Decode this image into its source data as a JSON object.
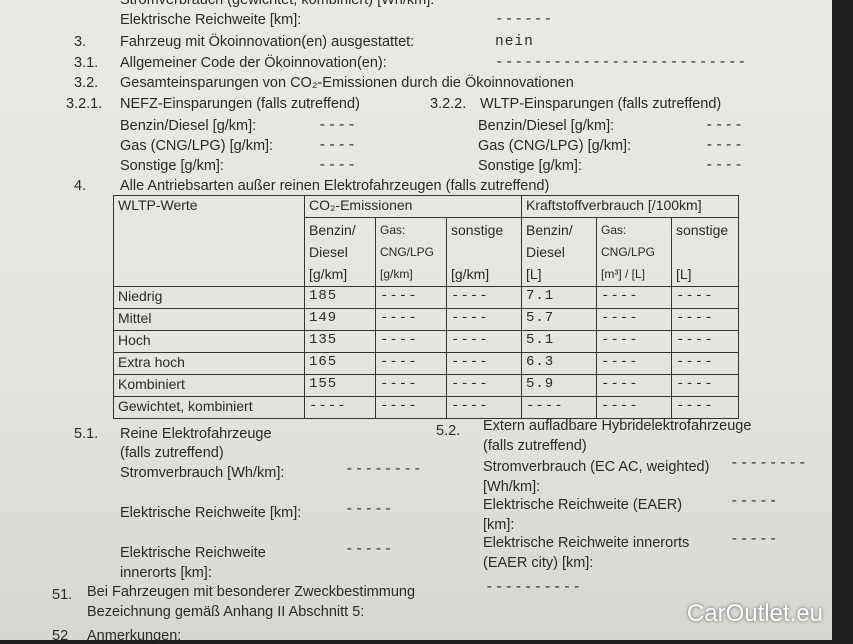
{
  "top": {
    "strom_label": "Stromverbrauch (gewichtet, kombiniert) [Wh/km]:",
    "strom_value": "------",
    "reich_label": "Elektrische Reichweite [km]:",
    "reich_value": "------"
  },
  "s3": {
    "num": "3.",
    "label": "Fahrzeug mit Ökoinnovation(en) ausgestattet:",
    "value": "nein"
  },
  "s31": {
    "num": "3.1.",
    "label": "Allgemeiner Code der Ökoinnovation(en):",
    "value": "--------------------------"
  },
  "s32": {
    "num": "3.2.",
    "label": "Gesamteinsparungen von CO₂-Emissionen durch die Ökoinnovationen"
  },
  "s321": {
    "num": "3.2.1.",
    "label": "NEFZ-Einsparungen (falls zutreffend)",
    "rows": [
      {
        "l": "Benzin/Diesel [g/km]:",
        "v": "----"
      },
      {
        "l": "Gas (CNG/LPG) [g/km]:",
        "v": "----"
      },
      {
        "l": "Sonstige [g/km]:",
        "v": "----"
      }
    ]
  },
  "s322": {
    "num": "3.2.2.",
    "label": "WLTP-Einsparungen (falls zutreffend)",
    "rows": [
      {
        "l": "Benzin/Diesel [g/km]:",
        "v": "----"
      },
      {
        "l": "Gas (CNG/LPG) [g/km]:",
        "v": "----"
      },
      {
        "l": "Sonstige [g/km]:",
        "v": "----"
      }
    ]
  },
  "s4": {
    "num": "4.",
    "label": "Alle Antriebsarten außer reinen Elektrofahrzeugen (falls zutreffend)"
  },
  "table": {
    "h0": "WLTP-Werte",
    "h_co2": "CO₂-Emissionen",
    "h_fuel": "Kraftstoffverbrauch [/100km]",
    "sub": [
      "Benzin/\nDiesel\n[g/km]",
      "Gas:\nCNG/LPG\n[g/km]",
      "sonstige\n\n[g/km]",
      "Benzin/\nDiesel\n[L]",
      "Gas:\nCNG/LPG\n[m³] / [L]",
      "sonstige\n\n[L]"
    ],
    "rows": [
      [
        "Niedrig",
        "185",
        "----",
        "----",
        "7.1",
        "----",
        "----"
      ],
      [
        "Mittel",
        "149",
        "----",
        "----",
        "5.7",
        "----",
        "----"
      ],
      [
        "Hoch",
        "135",
        "----",
        "----",
        "5.1",
        "----",
        "----"
      ],
      [
        "Extra hoch",
        "165",
        "----",
        "----",
        "6.3",
        "----",
        "----"
      ],
      [
        "Kombiniert",
        "155",
        "----",
        "----",
        "5.9",
        "----",
        "----"
      ],
      [
        "Gewichtet, kombiniert",
        "----",
        "----",
        "----",
        "----",
        "----",
        "----"
      ]
    ]
  },
  "s51": {
    "num": "5.1.",
    "label": "Reine Elektrofahrzeuge",
    "sub": "(falls zutreffend)",
    "strom": "Stromverbrauch [Wh/km]:",
    "strom_v": "--------",
    "reich": "Elektrische Reichweite [km]:",
    "reich_v": "-----",
    "inner1": "Elektrische Reichweite",
    "inner2": "innerorts [km]:",
    "inner_v": "-----"
  },
  "s52": {
    "num": "5.2.",
    "label": "Extern aufladbare Hybridelektrofahrzeuge",
    "sub": "(falls zutreffend)",
    "strom1": "Stromverbrauch (EC AC, weighted)",
    "strom2": "[Wh/km]:",
    "strom_v": "--------",
    "eaer1": "Elektrische Reichweite (EAER)",
    "eaer2": "[km]:",
    "eaer_v": "-----",
    "city1": "Elektrische Reichweite innerorts",
    "city2": "(EAER city) [km]:",
    "city_v": "-----"
  },
  "s51b": {
    "num": "51.",
    "label1": "Bei Fahrzeugen mit besonderer Zweckbestimmung",
    "label2": "Bezeichnung gemäß Anhang II Abschnitt 5:",
    "value": "----------"
  },
  "s52b": {
    "num": "52",
    "label": "Anmerkungen:"
  },
  "watermark": "CarOutlet.eu"
}
